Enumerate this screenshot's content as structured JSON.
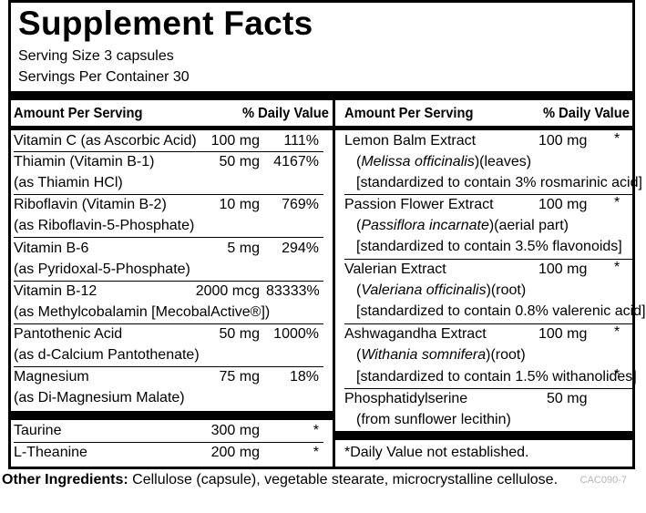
{
  "title": "Supplement Facts",
  "serving_size": "Serving Size 3 capsules",
  "servings_per_container": "Servings Per Container 30",
  "headers": {
    "amount_per_serving": "Amount Per Serving",
    "daily_value": "% Daily Value"
  },
  "left_rows": [
    {
      "name": "Vitamin C (as Ascorbic Acid)",
      "amount": "100 mg",
      "dv": "111%"
    },
    {
      "name": "Thiamin (Vitamin B-1)",
      "sub": "(as Thiamin HCl)",
      "amount": "50 mg",
      "dv": "4167%"
    },
    {
      "name": "Riboflavin (Vitamin B-2)",
      "sub": "(as Riboflavin-5-Phosphate)",
      "amount": "10 mg",
      "dv": "769%"
    },
    {
      "name": "Vitamin B-6",
      "sub": "(as Pyridoxal-5-Phosphate)",
      "amount": "5 mg",
      "dv": "294%"
    },
    {
      "name": "Vitamin B-12",
      "sub": "(as Methylcobalamin [MecobalActive®])",
      "amount": "2000 mcg",
      "dv": "83333%"
    },
    {
      "name": "Pantothenic Acid",
      "sub": "(as d-Calcium Pantothenate)",
      "amount": "50 mg",
      "dv": "1000%"
    },
    {
      "name": "Magnesium",
      "sub": "(as Di-Magnesium Malate)",
      "amount": "75 mg",
      "dv": "18%"
    }
  ],
  "left_other": [
    {
      "name": "Taurine",
      "amount": "300 mg",
      "dv": "*"
    },
    {
      "name": "L-Theanine",
      "amount": "200 mg",
      "dv": "*"
    }
  ],
  "right_rows": [
    {
      "name": "Lemon Balm Extract",
      "amount": "100 mg",
      "dv": "*",
      "latin": "Melissa officinalis",
      "part": ")(leaves)",
      "std": "[standardized to contain 3% rosmarinic acid]",
      "std_dv": ""
    },
    {
      "name": "Passion Flower Extract",
      "amount": "100 mg",
      "dv": "*",
      "latin": "Passiflora incarnate",
      "part": ")(aerial part)",
      "std": "[standardized to contain 3.5% flavonoids]",
      "std_dv": ""
    },
    {
      "name": "Valerian Extract",
      "amount": "100 mg",
      "dv": "*",
      "latin": "Valeriana officinalis",
      "part": ")(root)",
      "std": "[standardized to contain 0.8% valerenic acid]",
      "std_dv": ""
    },
    {
      "name": "Ashwagandha Extract",
      "amount": "100 mg",
      "dv": "*",
      "latin": "Withania somnifera",
      "part": ")(root)",
      "std": "[standardized to contain 1.5% withanolides]",
      "std_dv": "*"
    }
  ],
  "phosphatidylserine": {
    "name": "Phosphatidylserine",
    "sub": "(from sunflower lecithin)",
    "amount": "50 mg"
  },
  "footnote": "*Daily Value not established.",
  "other_ingredients": {
    "label": "Other Ingredients:",
    "text": " Cellulose (capsule), vegetable stearate, microcrystalline cellulose."
  },
  "product_code": "CAC090-7"
}
